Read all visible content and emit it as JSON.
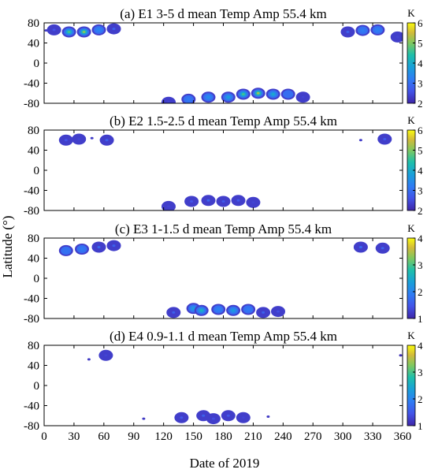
{
  "figure": {
    "ylabel": "Latitude (°)",
    "xlabel": "Date of 2019"
  },
  "chart_data": [
    {
      "type": "heatmap",
      "title": "(a) E1 3-5 d mean Temp Amp 55.4 km",
      "colorbar_label": "K",
      "xlim": [
        0,
        360
      ],
      "ylim": [
        -80,
        80
      ],
      "x_ticks": [],
      "y_ticks": [
        "80",
        "40",
        "0",
        "-40",
        "-80"
      ],
      "cbar_range": [
        2,
        6
      ],
      "cbar_ticks": [
        "6",
        "5",
        "4",
        "3",
        "2"
      ],
      "blobs": [
        {
          "day": 2,
          "lat": 65,
          "amp": 2.3
        },
        {
          "day": 10,
          "lat": 66,
          "amp": 2.6
        },
        {
          "day": 25,
          "lat": 62,
          "amp": 4.6
        },
        {
          "day": 40,
          "lat": 62,
          "amp": 5.0
        },
        {
          "day": 55,
          "lat": 66,
          "amp": 3.4
        },
        {
          "day": 70,
          "lat": 68,
          "amp": 2.8
        },
        {
          "day": 305,
          "lat": 62,
          "amp": 2.8
        },
        {
          "day": 320,
          "lat": 65,
          "amp": 3.2
        },
        {
          "day": 335,
          "lat": 66,
          "amp": 3.3
        },
        {
          "day": 355,
          "lat": 52,
          "amp": 2.4
        },
        {
          "day": 125,
          "lat": -78,
          "amp": 2.4
        },
        {
          "day": 145,
          "lat": -72,
          "amp": 3.2
        },
        {
          "day": 165,
          "lat": -68,
          "amp": 3.5
        },
        {
          "day": 185,
          "lat": -68,
          "amp": 3.8
        },
        {
          "day": 200,
          "lat": -62,
          "amp": 4.6
        },
        {
          "day": 215,
          "lat": -60,
          "amp": 5.2
        },
        {
          "day": 230,
          "lat": -62,
          "amp": 4.0
        },
        {
          "day": 245,
          "lat": -62,
          "amp": 3.0
        },
        {
          "day": 260,
          "lat": -68,
          "amp": 2.4
        }
      ]
    },
    {
      "type": "heatmap",
      "title": "(b) E2 1.5-2.5 d mean Temp Amp 55.4 km",
      "colorbar_label": "K",
      "xlim": [
        0,
        360
      ],
      "ylim": [
        -80,
        80
      ],
      "x_ticks": [],
      "y_ticks": [
        "80",
        "40",
        "0",
        "-40",
        "-80"
      ],
      "cbar_range": [
        2,
        6
      ],
      "cbar_ticks": [
        "6",
        "5",
        "4",
        "3",
        "2"
      ],
      "blobs": [
        {
          "day": 22,
          "lat": 60,
          "amp": 2.6
        },
        {
          "day": 35,
          "lat": 62,
          "amp": 2.4
        },
        {
          "day": 48,
          "lat": 64,
          "amp": 2.3
        },
        {
          "day": 63,
          "lat": 60,
          "amp": 2.8
        },
        {
          "day": 318,
          "lat": 60,
          "amp": 2.3
        },
        {
          "day": 342,
          "lat": 62,
          "amp": 2.7
        },
        {
          "day": 125,
          "lat": -72,
          "amp": 2.4
        },
        {
          "day": 148,
          "lat": -62,
          "amp": 2.6
        },
        {
          "day": 165,
          "lat": -60,
          "amp": 2.9
        },
        {
          "day": 180,
          "lat": -62,
          "amp": 2.7
        },
        {
          "day": 195,
          "lat": -60,
          "amp": 2.7
        },
        {
          "day": 210,
          "lat": -64,
          "amp": 2.4
        }
      ]
    },
    {
      "type": "heatmap",
      "title": "(c) E3 1-1.5 d mean Temp Amp 55.4 km",
      "colorbar_label": "K",
      "xlim": [
        0,
        360
      ],
      "ylim": [
        -80,
        80
      ],
      "x_ticks": [],
      "y_ticks": [
        "80",
        "40",
        "0",
        "-40",
        "-80"
      ],
      "cbar_range": [
        1,
        4
      ],
      "cbar_ticks": [
        "4",
        "3",
        "2",
        "1"
      ],
      "blobs": [
        {
          "day": 22,
          "lat": 55,
          "amp": 1.8
        },
        {
          "day": 38,
          "lat": 58,
          "amp": 1.9
        },
        {
          "day": 55,
          "lat": 62,
          "amp": 1.7
        },
        {
          "day": 70,
          "lat": 65,
          "amp": 1.6
        },
        {
          "day": 318,
          "lat": 62,
          "amp": 1.7
        },
        {
          "day": 340,
          "lat": 60,
          "amp": 1.6
        },
        {
          "day": 130,
          "lat": -68,
          "amp": 1.6
        },
        {
          "day": 150,
          "lat": -60,
          "amp": 2.3
        },
        {
          "day": 158,
          "lat": -64,
          "amp": 2.6
        },
        {
          "day": 175,
          "lat": -62,
          "amp": 2.0
        },
        {
          "day": 190,
          "lat": -64,
          "amp": 2.3
        },
        {
          "day": 205,
          "lat": -62,
          "amp": 1.9
        },
        {
          "day": 220,
          "lat": -68,
          "amp": 1.6
        },
        {
          "day": 235,
          "lat": -66,
          "amp": 1.4
        }
      ]
    },
    {
      "type": "heatmap",
      "title": "(d) E4 0.9-1.1 d mean Temp Amp 55.4 km",
      "colorbar_label": "K",
      "xlim": [
        0,
        360
      ],
      "ylim": [
        -80,
        80
      ],
      "x_ticks": [
        "0",
        "30",
        "60",
        "90",
        "120",
        "150",
        "180",
        "210",
        "240",
        "270",
        "300",
        "330",
        "360"
      ],
      "y_ticks": [
        "80",
        "40",
        "0",
        "-40",
        "-80"
      ],
      "cbar_range": [
        1,
        4
      ],
      "cbar_ticks": [
        "4",
        "3",
        "2",
        "1"
      ],
      "blobs": [
        {
          "day": 45,
          "lat": 52,
          "amp": 1.2
        },
        {
          "day": 62,
          "lat": 60,
          "amp": 1.3
        },
        {
          "day": 100,
          "lat": -66,
          "amp": 1.2
        },
        {
          "day": 138,
          "lat": -64,
          "amp": 1.5
        },
        {
          "day": 160,
          "lat": -60,
          "amp": 1.6
        },
        {
          "day": 170,
          "lat": -66,
          "amp": 1.4
        },
        {
          "day": 185,
          "lat": -60,
          "amp": 1.5
        },
        {
          "day": 200,
          "lat": -64,
          "amp": 1.3
        },
        {
          "day": 225,
          "lat": -62,
          "amp": 1.2
        },
        {
          "day": 358,
          "lat": 60,
          "amp": 1.1
        }
      ]
    }
  ]
}
